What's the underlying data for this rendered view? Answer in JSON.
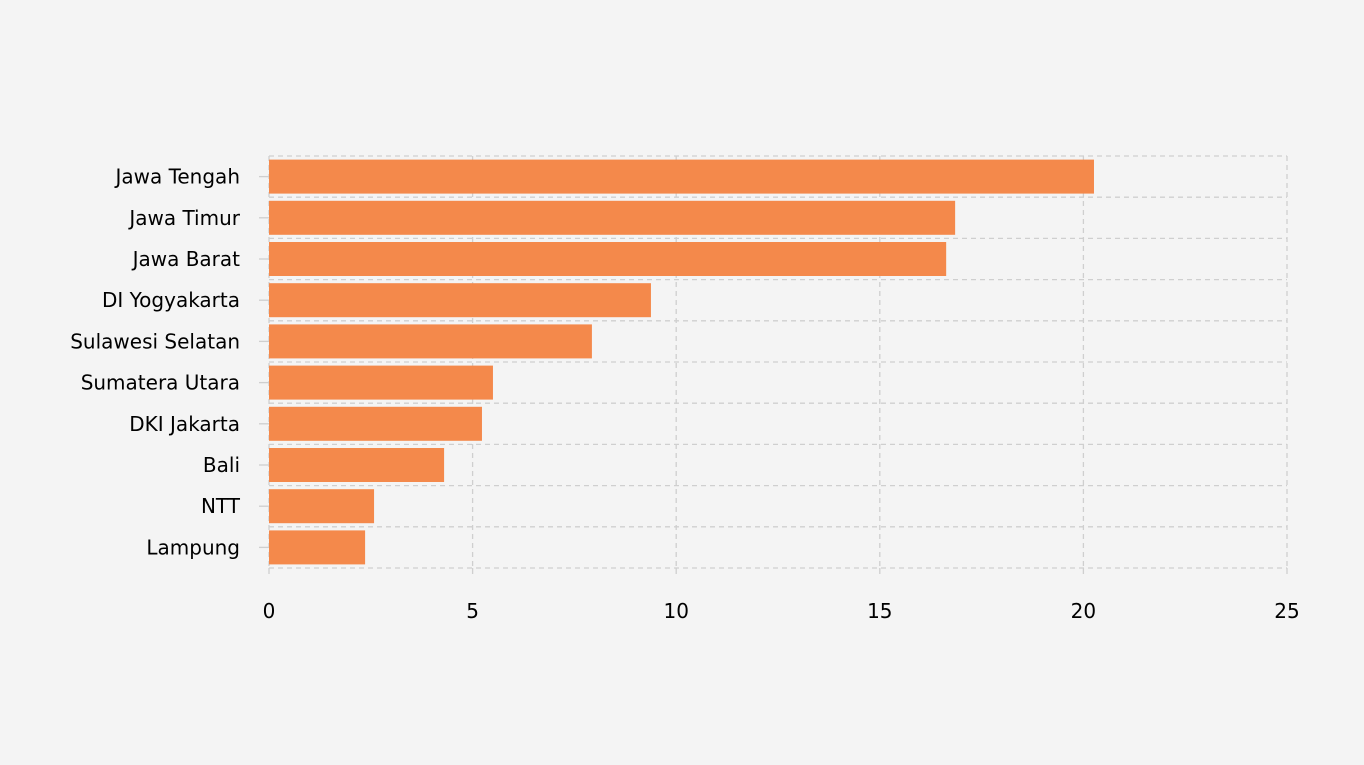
{
  "chart_data": {
    "type": "bar",
    "orientation": "horizontal",
    "title": "",
    "xlabel": "",
    "ylabel": "",
    "categories": [
      "Jawa Tengah",
      "Jawa Timur",
      "Jawa Barat",
      "DI Yogyakarta",
      "Sulawesi Selatan",
      "Sumatera Utara",
      "DKI Jakarta",
      "Bali",
      "NTT",
      "Lampung"
    ],
    "values": [
      20.26,
      16.85,
      16.63,
      9.38,
      7.93,
      5.5,
      5.23,
      4.3,
      2.58,
      2.36
    ],
    "xlim": [
      0,
      25
    ],
    "xticks": [
      "0",
      "5",
      "10",
      "15",
      "20",
      "25"
    ],
    "grid": true,
    "bar_color": "#f4894b"
  }
}
